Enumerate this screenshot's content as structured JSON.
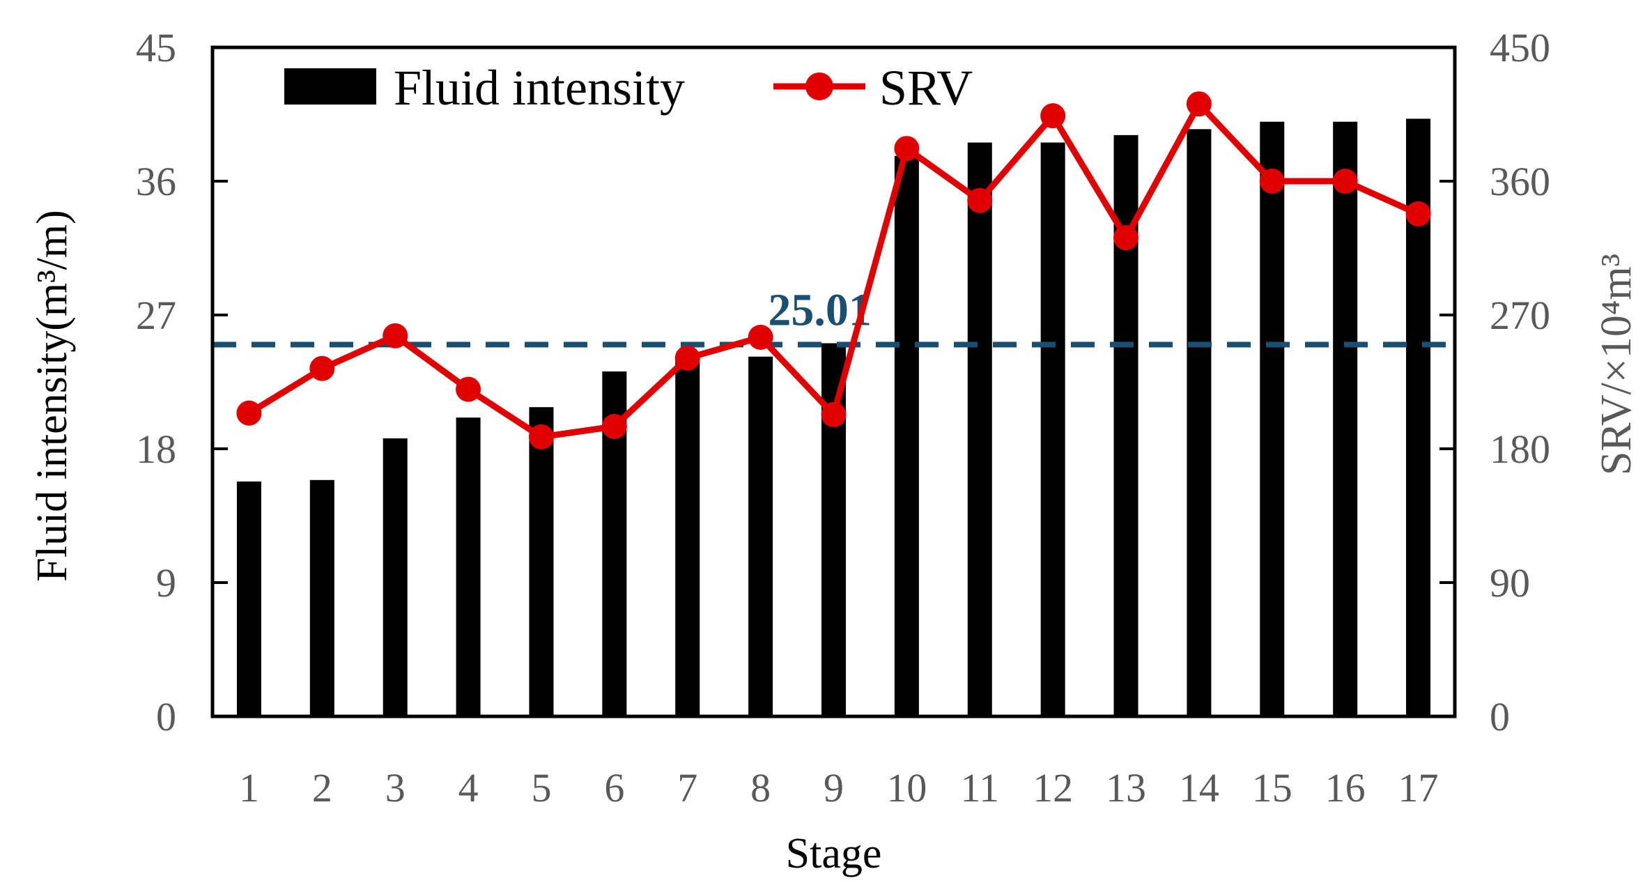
{
  "chart_data": {
    "type": "bar",
    "categories": [
      "1",
      "2",
      "3",
      "4",
      "5",
      "6",
      "7",
      "8",
      "9",
      "10",
      "11",
      "12",
      "13",
      "14",
      "15",
      "16",
      "17"
    ],
    "series": [
      {
        "name": "Fluid intensity",
        "type": "bar",
        "axis": "left",
        "color": "#000000",
        "values": [
          15.8,
          15.9,
          18.7,
          20.1,
          20.8,
          23.2,
          24.1,
          24.2,
          25.1,
          37.7,
          38.6,
          38.6,
          39.1,
          39.5,
          40.0,
          40.0,
          40.2
        ]
      },
      {
        "name": "SRV",
        "type": "line",
        "axis": "right",
        "color": "#e00000",
        "values": [
          204,
          234,
          256,
          220,
          188,
          195,
          241,
          255,
          203,
          382,
          347,
          404,
          322,
          412,
          360,
          360,
          338
        ]
      }
    ],
    "reference_line": {
      "value": 25.01,
      "label": "25.01",
      "axis": "left",
      "color": "#1b4f72"
    },
    "xlabel": "Stage",
    "ylabel": "Fluid intensity(m³/m)",
    "y2label": "SRV/×10⁴m³",
    "ylim": [
      0,
      45
    ],
    "y2lim": [
      0,
      450
    ],
    "yticks": [
      "0",
      "9",
      "18",
      "27",
      "36",
      "45"
    ],
    "y2ticks": [
      "0",
      "90",
      "180",
      "270",
      "360",
      "450"
    ],
    "legend_position": "top-left",
    "grid": false
  }
}
